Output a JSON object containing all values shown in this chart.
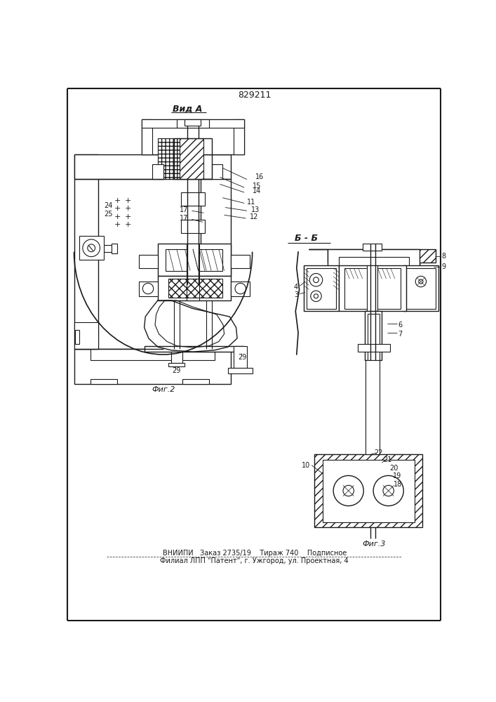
{
  "patent_number": "829211",
  "bg_color": "#ffffff",
  "line_color": "#1a1a1a",
  "fig_width": 7.07,
  "fig_height": 10.0,
  "dpi": 100,
  "bottom_text1": "ВНИИПИ   Заказ 2735/19    Тираж 740    Подписное",
  "bottom_text2": "Филиал ЛПП \"Патент\", г. Ужгород, ул. Проектная, 4",
  "view_label": "Вид А",
  "fig2_label": "Фиг.2",
  "fig3_label": "Фиг.3",
  "section_label": "Б - Б"
}
